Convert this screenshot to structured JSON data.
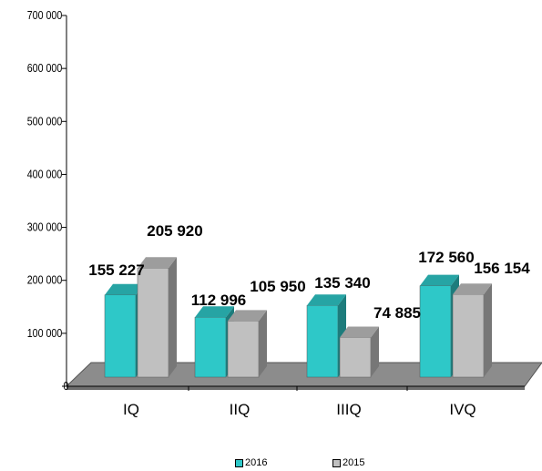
{
  "chart_data": {
    "type": "bar",
    "categories": [
      "IQ",
      "IIQ",
      "IIIQ",
      "IVQ"
    ],
    "series": [
      {
        "name": "2016",
        "values": [
          155227,
          112996,
          135340,
          172560
        ],
        "labels": [
          "155 227",
          "112 996",
          "135 340",
          "172 560"
        ]
      },
      {
        "name": "2015",
        "values": [
          205920,
          105950,
          74885,
          156154
        ],
        "labels": [
          "205 920",
          "105 950",
          "74 885",
          "156 154"
        ]
      }
    ],
    "ylim": [
      0,
      700000
    ],
    "yticks": [
      0,
      100000,
      200000,
      300000,
      400000,
      500000,
      600000,
      700000
    ],
    "ytick_labels": [
      "0",
      "100 000",
      "200 000",
      "300 000",
      "400 000",
      "500 000",
      "600 000",
      "700 000"
    ],
    "legend_position": "bottom",
    "grid": false,
    "style": "3d-column",
    "colors": {
      "2016": "#2ec8c8",
      "2015": "#c0c0c0",
      "floor": "#8c8c8c"
    }
  }
}
